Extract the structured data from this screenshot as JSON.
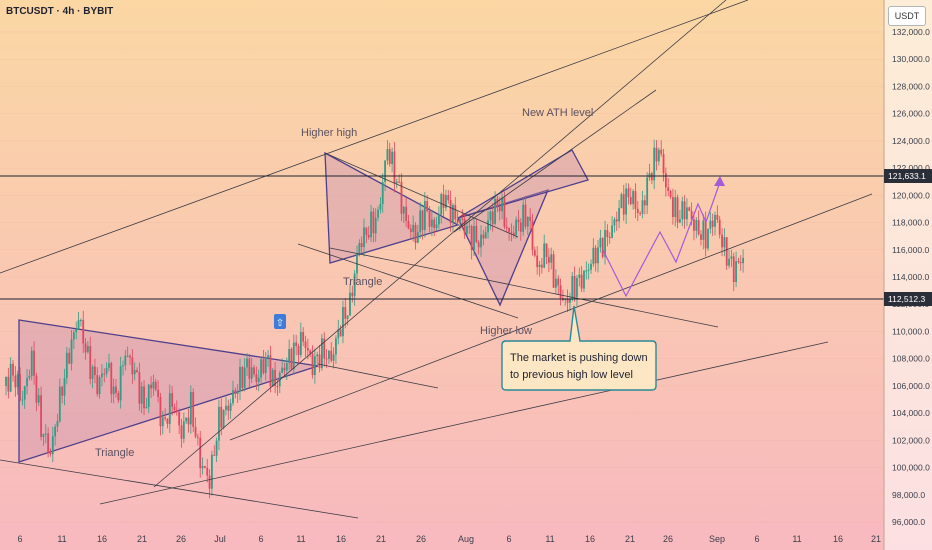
{
  "header": {
    "symbol": "BTCUSDT · 4h · BYBIT",
    "currency": "USDT"
  },
  "chart_data": {
    "type": "candlestick",
    "symbol": "BTCUSDT",
    "interval": "4h",
    "exchange": "BYBIT",
    "y_axis": {
      "range": [
        96000,
        132000
      ],
      "ticks": [
        "96,000.0",
        "98,000.0",
        "100,000.0",
        "102,000.0",
        "104,000.0",
        "106,000.0",
        "108,000.0",
        "110,000.0",
        "112,000.0",
        "114,000.0",
        "116,000.0",
        "118,000.0",
        "120,000.0",
        "122,000.0",
        "124,000.0",
        "126,000.0",
        "128,000.0",
        "130,000.0",
        "132,000.0"
      ]
    },
    "x_axis": {
      "ticks": [
        "6",
        "11",
        "16",
        "21",
        "26",
        "Jul",
        "6",
        "11",
        "16",
        "21",
        "26",
        "Aug",
        "6",
        "11",
        "16",
        "21",
        "26",
        "Sep",
        "6",
        "11",
        "16",
        "21"
      ]
    },
    "levels": [
      {
        "label": "121,633.1",
        "value": 121633.1
      },
      {
        "label": "112,512.3",
        "value": 112512.3
      }
    ],
    "annotations": [
      {
        "text": "Higher high"
      },
      {
        "text": "New ATH  level"
      },
      {
        "text": "Triangle"
      },
      {
        "text": "Triangle"
      },
      {
        "text": "Higher low"
      }
    ],
    "callout": {
      "line1": "The market is pushing down",
      "line2": "to previous high low level"
    },
    "price_path": [
      [
        0,
        106000
      ],
      [
        4,
        107000
      ],
      [
        8,
        105000
      ],
      [
        12,
        108000
      ],
      [
        16,
        103000
      ],
      [
        20,
        101000
      ],
      [
        24,
        105000
      ],
      [
        28,
        108500
      ],
      [
        32,
        111000
      ],
      [
        36,
        108000
      ],
      [
        40,
        106000
      ],
      [
        44,
        107500
      ],
      [
        48,
        105000
      ],
      [
        52,
        108500
      ],
      [
        56,
        107000
      ],
      [
        60,
        104500
      ],
      [
        64,
        106500
      ],
      [
        68,
        103000
      ],
      [
        72,
        105000
      ],
      [
        76,
        102500
      ],
      [
        80,
        104500
      ],
      [
        84,
        100500
      ],
      [
        88,
        99000
      ],
      [
        92,
        103500
      ],
      [
        96,
        104500
      ],
      [
        100,
        106000
      ],
      [
        104,
        107500
      ],
      [
        108,
        106500
      ],
      [
        112,
        108000
      ],
      [
        116,
        106000
      ],
      [
        120,
        107500
      ],
      [
        124,
        108500
      ],
      [
        128,
        109500
      ],
      [
        132,
        107500
      ],
      [
        136,
        108500
      ],
      [
        140,
        108000
      ],
      [
        144,
        110500
      ],
      [
        148,
        112000
      ],
      [
        152,
        116500
      ],
      [
        156,
        117500
      ],
      [
        160,
        118500
      ],
      [
        164,
        123500
      ],
      [
        168,
        121000
      ],
      [
        172,
        118000
      ],
      [
        176,
        117000
      ],
      [
        180,
        119000
      ],
      [
        184,
        117500
      ],
      [
        188,
        120000
      ],
      [
        192,
        118500
      ],
      [
        196,
        118000
      ],
      [
        200,
        117000
      ],
      [
        204,
        116500
      ],
      [
        208,
        118500
      ],
      [
        212,
        119500
      ],
      [
        216,
        117000
      ],
      [
        220,
        118000
      ],
      [
        224,
        118500
      ],
      [
        228,
        114500
      ],
      [
        232,
        116000
      ],
      [
        236,
        113500
      ],
      [
        240,
        112000
      ],
      [
        244,
        113500
      ],
      [
        248,
        114000
      ],
      [
        252,
        115500
      ],
      [
        256,
        116500
      ],
      [
        260,
        117500
      ],
      [
        264,
        119500
      ],
      [
        268,
        120000
      ],
      [
        272,
        118500
      ],
      [
        276,
        121500
      ],
      [
        280,
        123500
      ],
      [
        284,
        120000
      ],
      [
        288,
        118500
      ],
      [
        292,
        119000
      ],
      [
        296,
        117500
      ],
      [
        300,
        117000
      ],
      [
        304,
        118500
      ],
      [
        308,
        116000
      ],
      [
        312,
        114500
      ],
      [
        316,
        115500
      ]
    ],
    "projection_path": [
      [
        316,
        115500
      ],
      [
        322,
        112500
      ],
      [
        332,
        117500
      ],
      [
        338,
        114500
      ],
      [
        346,
        119500
      ],
      [
        352,
        117000
      ],
      [
        362,
        122000
      ]
    ]
  }
}
